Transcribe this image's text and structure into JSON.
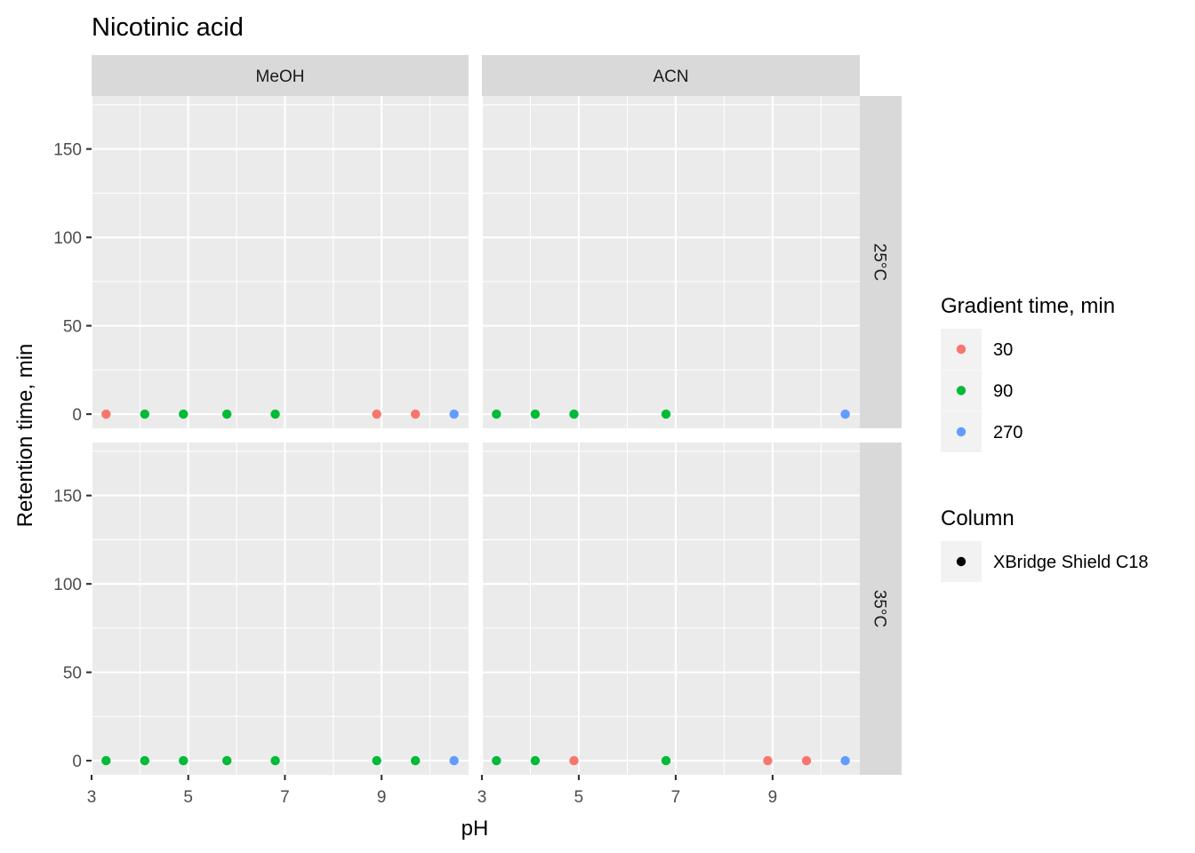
{
  "chart_data": {
    "type": "scatter",
    "title": "Nicotinic acid",
    "xlabel": "pH",
    "ylabel": "Retention time, min",
    "xlim": [
      3,
      10.8
    ],
    "ylim": [
      -8,
      180
    ],
    "x_ticks": [
      3,
      5,
      7,
      9
    ],
    "y_ticks": [
      0,
      50,
      100,
      150
    ],
    "grid": true,
    "facet_columns": [
      "MeOH",
      "ACN"
    ],
    "facet_rows": [
      "25°C",
      "35°C"
    ],
    "legend_placement": "right",
    "legend_color": {
      "title": "Gradient time, min",
      "entries": [
        {
          "label": "30",
          "color": "#F8766D"
        },
        {
          "label": "90",
          "color": "#00BA38"
        },
        {
          "label": "270",
          "color": "#619CFF"
        }
      ]
    },
    "legend_shape": {
      "title": "Column",
      "entries": [
        {
          "label": "XBridge Shield C18",
          "color": "#000000"
        }
      ]
    },
    "panels": [
      {
        "column": "MeOH",
        "row": "25°C",
        "points": [
          {
            "x": 3.3,
            "y": 0,
            "gradient": "30"
          },
          {
            "x": 4.1,
            "y": 0,
            "gradient": "90"
          },
          {
            "x": 4.9,
            "y": 0,
            "gradient": "90"
          },
          {
            "x": 5.8,
            "y": 0,
            "gradient": "90"
          },
          {
            "x": 6.8,
            "y": 0,
            "gradient": "90"
          },
          {
            "x": 8.9,
            "y": 0,
            "gradient": "30"
          },
          {
            "x": 9.7,
            "y": 0,
            "gradient": "30"
          },
          {
            "x": 10.5,
            "y": 0,
            "gradient": "270"
          }
        ]
      },
      {
        "column": "ACN",
        "row": "25°C",
        "points": [
          {
            "x": 3.3,
            "y": 0,
            "gradient": "90"
          },
          {
            "x": 4.1,
            "y": 0,
            "gradient": "90"
          },
          {
            "x": 4.9,
            "y": 0,
            "gradient": "90"
          },
          {
            "x": 6.8,
            "y": 0,
            "gradient": "90"
          },
          {
            "x": 10.5,
            "y": 0,
            "gradient": "270"
          }
        ]
      },
      {
        "column": "MeOH",
        "row": "35°C",
        "points": [
          {
            "x": 3.3,
            "y": 0,
            "gradient": "90"
          },
          {
            "x": 4.1,
            "y": 0,
            "gradient": "90"
          },
          {
            "x": 4.9,
            "y": 0,
            "gradient": "90"
          },
          {
            "x": 5.8,
            "y": 0,
            "gradient": "90"
          },
          {
            "x": 6.8,
            "y": 0,
            "gradient": "90"
          },
          {
            "x": 8.9,
            "y": 0,
            "gradient": "90"
          },
          {
            "x": 9.7,
            "y": 0,
            "gradient": "90"
          },
          {
            "x": 10.5,
            "y": 0,
            "gradient": "270"
          }
        ]
      },
      {
        "column": "ACN",
        "row": "35°C",
        "points": [
          {
            "x": 3.3,
            "y": 0,
            "gradient": "90"
          },
          {
            "x": 4.1,
            "y": 0,
            "gradient": "90"
          },
          {
            "x": 4.9,
            "y": 0,
            "gradient": "30"
          },
          {
            "x": 6.8,
            "y": 0,
            "gradient": "90"
          },
          {
            "x": 8.9,
            "y": 0,
            "gradient": "30"
          },
          {
            "x": 9.7,
            "y": 0,
            "gradient": "30"
          },
          {
            "x": 10.5,
            "y": 0,
            "gradient": "270"
          }
        ]
      }
    ]
  }
}
